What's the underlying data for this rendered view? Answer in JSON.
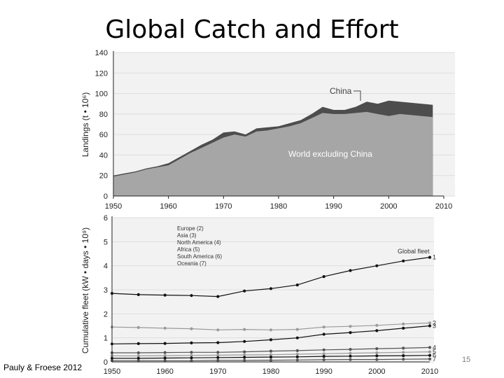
{
  "slide": {
    "title": "Global Catch and Effort",
    "citation": "Pauly & Froese 2012",
    "page_number": "15"
  },
  "colors": {
    "world_area": "#a6a6a6",
    "china_area": "#4d4d4d",
    "dark_series": "#111111",
    "light_series": "#9a9a9a",
    "panel_background": "#f2f2f2"
  },
  "chart_data": [
    {
      "type": "area",
      "ylabel": "Landings (t • 10⁶)",
      "xlim": [
        1950,
        2010
      ],
      "ylim": [
        0,
        140
      ],
      "x_ticks": [
        1950,
        1960,
        1970,
        1980,
        1990,
        2000,
        2010
      ],
      "y_ticks": [
        0,
        20,
        40,
        60,
        80,
        100,
        120,
        140
      ],
      "grid": true,
      "x": [
        1950,
        1952,
        1954,
        1956,
        1958,
        1960,
        1962,
        1964,
        1966,
        1968,
        1970,
        1972,
        1974,
        1976,
        1978,
        1980,
        1982,
        1984,
        1986,
        1988,
        1990,
        1992,
        1994,
        1996,
        1998,
        2000,
        2002,
        2004,
        2006,
        2008
      ],
      "series": [
        {
          "name": "World excluding China",
          "values": [
            19,
            21,
            23,
            26,
            28,
            30,
            36,
            42,
            47,
            52,
            57,
            60,
            58,
            63,
            64,
            66,
            68,
            71,
            76,
            81,
            80,
            80,
            81,
            82,
            80,
            78,
            80,
            79,
            78,
            77
          ]
        },
        {
          "name": "China",
          "values": [
            20,
            22,
            24,
            27,
            29,
            32,
            38,
            44,
            50,
            55,
            62,
            63,
            60,
            66,
            67,
            68,
            71,
            74,
            80,
            87,
            84,
            84,
            87,
            92,
            90,
            93,
            92,
            91,
            90,
            89
          ]
        }
      ]
    },
    {
      "type": "line",
      "ylabel": "Cumulative fleet (kW • days • 10⁹)",
      "xlim": [
        1950,
        2010
      ],
      "ylim": [
        0,
        6
      ],
      "x_ticks": [
        1950,
        1960,
        1970,
        1980,
        1990,
        2000,
        2010
      ],
      "y_ticks": [
        0,
        1,
        2,
        3,
        4,
        5,
        6
      ],
      "grid": true,
      "legend": [
        "Europe (2)",
        "Asia (3)",
        "North America (4)",
        "Africa (5)",
        "South America (6)",
        "Oceania (7)"
      ],
      "x": [
        1950,
        1955,
        1960,
        1965,
        1970,
        1975,
        1980,
        1985,
        1990,
        1995,
        2000,
        2005,
        2010
      ],
      "series": [
        {
          "name": "Global fleet",
          "label": "1",
          "values": [
            2.85,
            2.8,
            2.78,
            2.76,
            2.72,
            2.95,
            3.05,
            3.2,
            3.55,
            3.8,
            4.0,
            4.2,
            4.35
          ]
        },
        {
          "name": "Europe",
          "label": "2",
          "values": [
            1.45,
            1.43,
            1.4,
            1.38,
            1.33,
            1.35,
            1.33,
            1.35,
            1.45,
            1.48,
            1.52,
            1.58,
            1.62
          ]
        },
        {
          "name": "Asia",
          "label": "3",
          "values": [
            0.75,
            0.76,
            0.77,
            0.79,
            0.8,
            0.85,
            0.92,
            1.0,
            1.15,
            1.22,
            1.3,
            1.4,
            1.5
          ]
        },
        {
          "name": "North America",
          "label": "4",
          "values": [
            0.38,
            0.38,
            0.39,
            0.4,
            0.4,
            0.42,
            0.45,
            0.47,
            0.5,
            0.52,
            0.55,
            0.57,
            0.6
          ]
        },
        {
          "name": "Africa",
          "label": "5",
          "values": [
            0.25,
            0.25,
            0.26,
            0.27,
            0.28,
            0.29,
            0.3,
            0.32,
            0.34,
            0.36,
            0.38,
            0.4,
            0.42
          ]
        },
        {
          "name": "South America",
          "label": "6",
          "values": [
            0.15,
            0.15,
            0.16,
            0.17,
            0.18,
            0.19,
            0.2,
            0.21,
            0.23,
            0.24,
            0.25,
            0.26,
            0.27
          ]
        },
        {
          "name": "Oceania",
          "label": "7",
          "values": [
            0.05,
            0.05,
            0.05,
            0.05,
            0.06,
            0.06,
            0.07,
            0.08,
            0.09,
            0.1,
            0.1,
            0.11,
            0.12
          ]
        }
      ]
    }
  ]
}
